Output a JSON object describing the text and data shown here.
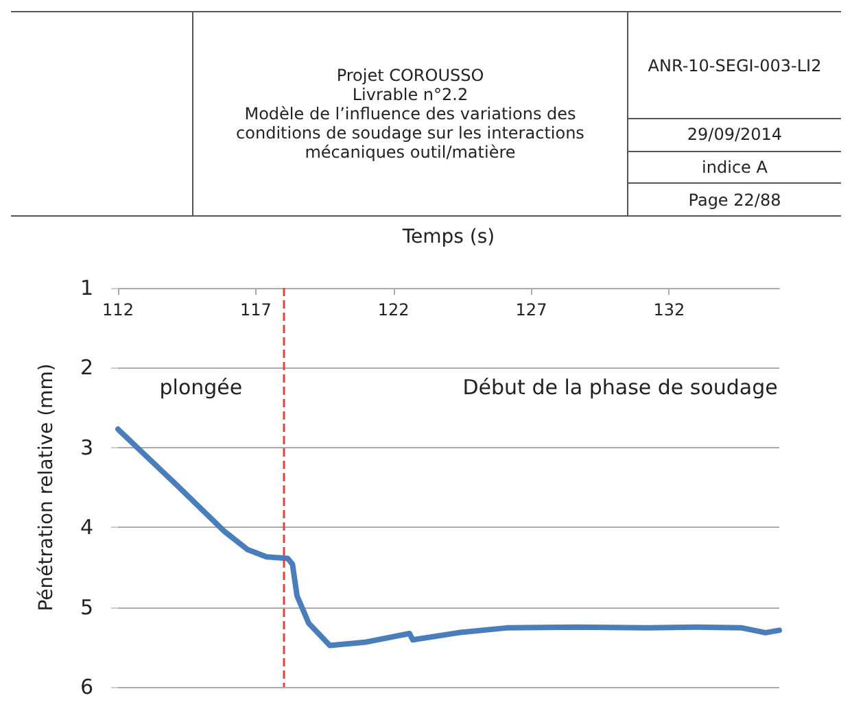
{
  "chart_data": {
    "type": "line",
    "xlabel": "Temps (s)",
    "ylabel": "Pénétration relative (mm)",
    "xlim": [
      112,
      136
    ],
    "xticks": [
      112,
      117,
      122,
      127,
      132
    ],
    "ylim": [
      6,
      1
    ],
    "yticks": [
      1,
      2,
      3,
      4,
      5,
      6
    ],
    "grid": "y",
    "marker": "none",
    "line_style": "solid",
    "series": [
      {
        "color": "#4a7ebb",
        "x": [
          112,
          114.16,
          115.86,
          116.71,
          117.39,
          118.16,
          118.33,
          118.5,
          118.92,
          119.69,
          120.96,
          122.58,
          122.7,
          124.36,
          126.1,
          128.67,
          131.23,
          132.94,
          134.65,
          135.5,
          136
        ],
        "values": [
          2.77,
          3.48,
          4.05,
          4.28,
          4.37,
          4.39,
          4.46,
          4.86,
          5.2,
          5.48,
          5.44,
          5.33,
          5.41,
          5.32,
          5.26,
          5.25,
          5.26,
          5.25,
          5.26,
          5.32,
          5.29
        ]
      }
    ],
    "ref_lines": [
      {
        "axis": "x",
        "value": 118,
        "label": null,
        "color": "#e0413b",
        "line_style": "dashed"
      }
    ],
    "annotations": [
      "Projet COROUSSO",
      "Livrable  n°2.2",
      "Modèle de l’influence des variations des conditions de soudage sur les interactions mécaniques outil/matière",
      "ANR-10-SEGI-003-LI2",
      "29/09/2014",
      "indice A",
      "Page 22/88",
      "plongée",
      "Début de la phase de soudage"
    ]
  }
}
